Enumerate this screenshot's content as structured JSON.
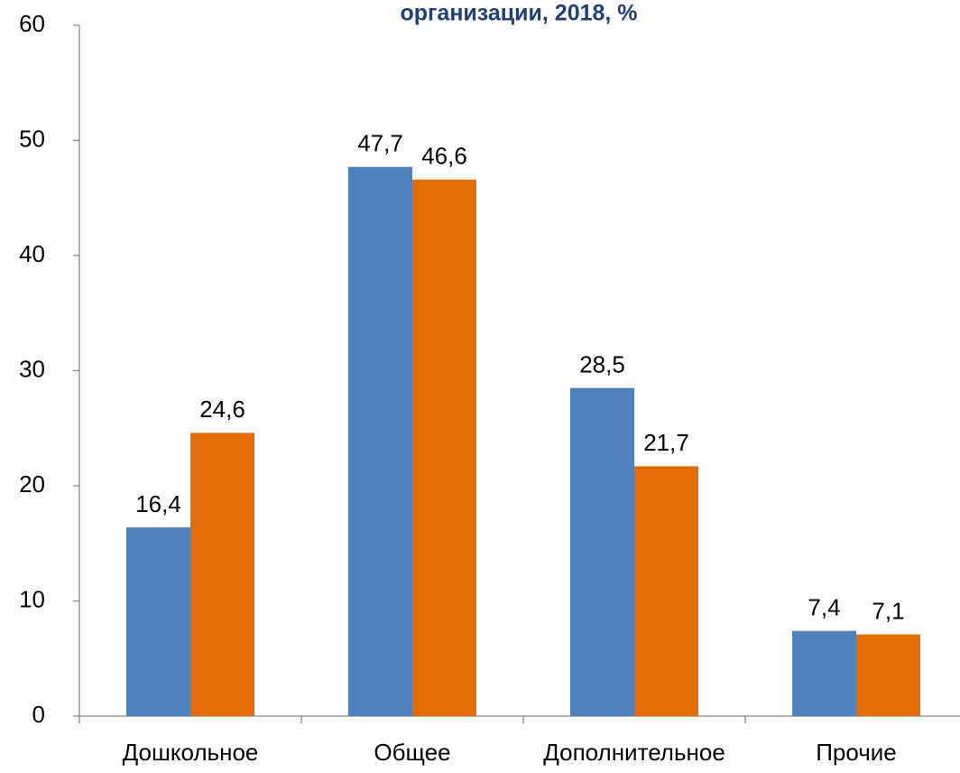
{
  "chart_data": {
    "type": "bar",
    "title": "организации, 2018, %",
    "categories": [
      "Дошкольное",
      "Общее",
      "Дополнительное",
      "Прочие"
    ],
    "series": [
      {
        "color": "#4f81bd",
        "values": [
          16.4,
          47.7,
          28.5,
          7.4
        ],
        "value_labels": [
          "16,4",
          "47,7",
          "28,5",
          "7,4"
        ]
      },
      {
        "color": "#e36c09",
        "values": [
          24.6,
          46.6,
          21.7,
          7.1
        ],
        "value_labels": [
          "24,6",
          "46,6",
          "21,7",
          "7,1"
        ]
      }
    ],
    "ylim": [
      0,
      60
    ],
    "yticks": [
      0,
      10,
      20,
      30,
      40,
      50,
      60
    ],
    "grid": false
  }
}
